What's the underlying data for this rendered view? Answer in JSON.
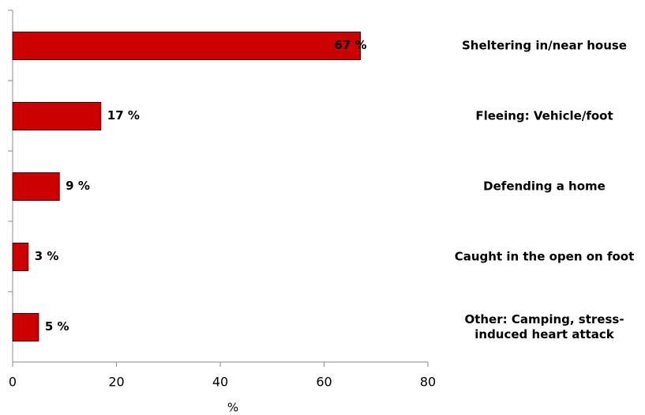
{
  "chart_data": {
    "type": "bar",
    "orientation": "horizontal",
    "x_label": "%",
    "categories": [
      "Sheltering in/near house",
      "Fleeing: Vehicle/foot",
      "Defending a home",
      "Caught in the open on foot",
      "Other: Camping, stress-induced heart attack"
    ],
    "values": [
      67,
      17,
      9,
      3,
      5
    ],
    "value_labels": [
      "67 %",
      "17 %",
      "9 %",
      "3 %",
      "5 %"
    ],
    "color": "#cc0000",
    "xlim": [
      0,
      80
    ],
    "xticks": [
      0,
      20,
      40,
      60,
      80
    ]
  }
}
